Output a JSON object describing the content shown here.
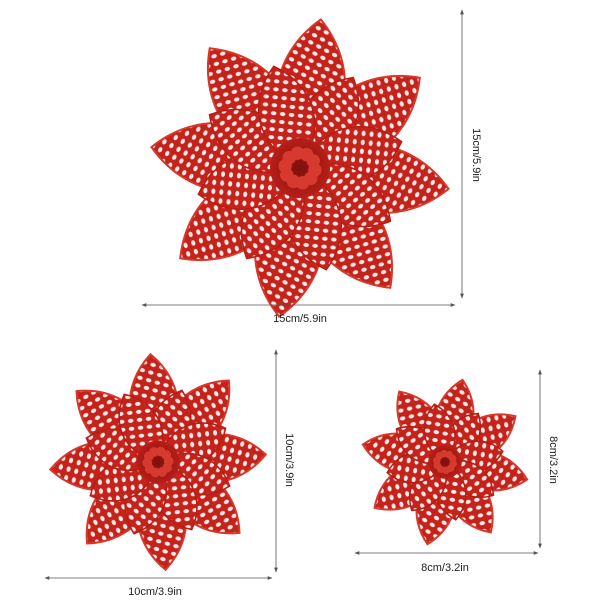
{
  "items": [
    {
      "width_label": "15cm/5.9in",
      "height_label": "15cm/5.9in"
    },
    {
      "width_label": "10cm/3.9in",
      "height_label": "10cm/3.9in"
    },
    {
      "width_label": "8cm/3.2in",
      "height_label": "8cm/3.2in"
    }
  ]
}
